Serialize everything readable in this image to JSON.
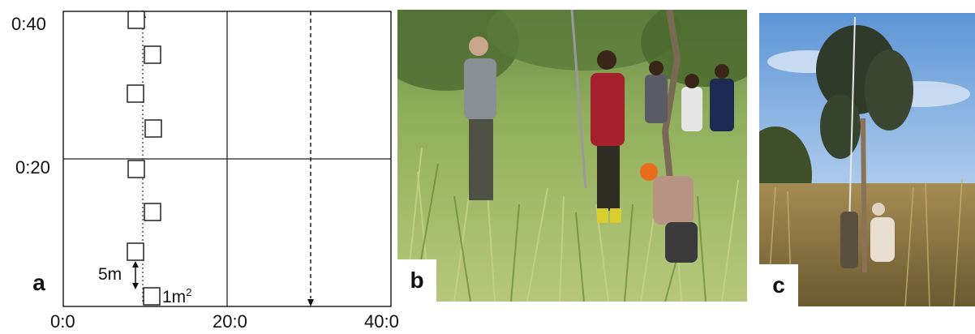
{
  "panel_a": {
    "letter": "a",
    "y_ticks": [
      "0:40",
      "0:20"
    ],
    "x_ticks": [
      "0:0",
      "20:0",
      "40:0"
    ],
    "spacing_label": "5m",
    "quadrat_size_label": "1m",
    "quadrat_size_exponent": "2"
  },
  "panel_b": {
    "letter": "b"
  },
  "panel_c": {
    "letter": "c"
  },
  "colors": {
    "frame": "#222222",
    "grass_light": "#a9c46a",
    "grass_dark": "#4e6b2a",
    "sky": "#6fa4dc"
  }
}
